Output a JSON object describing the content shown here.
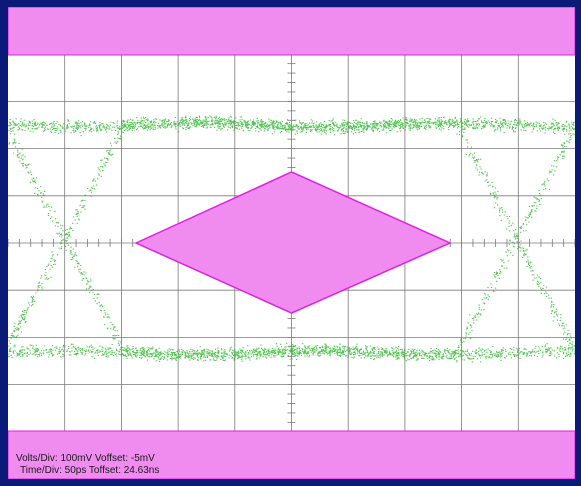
{
  "readout": {
    "line1": "Volts/Div: 100mV Voffset: -5mV",
    "line2": "Time/Div: 50ps Toffset: 24.63ns"
  },
  "colors": {
    "frame": "#0a1a78",
    "background": "#ffffff",
    "grid": "#7a7a7a",
    "mask_fill": "#f08cf0",
    "mask_edge": "#e020e0",
    "eye_trace": "#33bb33"
  },
  "scope": {
    "volts_per_div": "100mV",
    "voffset": "-5mV",
    "time_per_div": "50ps",
    "toffset": "24.63ns"
  }
}
